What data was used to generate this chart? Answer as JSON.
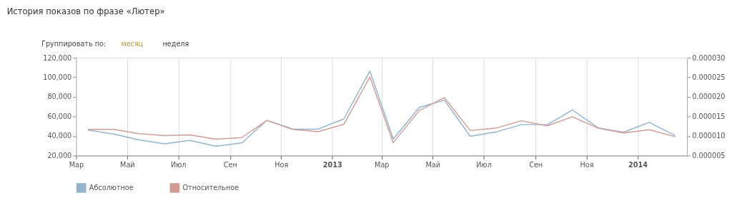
{
  "chart_data": {
    "type": "line",
    "title": "История показов по фразе «Лютер»",
    "annotations": [
      "Группировать по:",
      "месяц",
      "неделя"
    ],
    "x": [
      "2012-03-15",
      "2012-04-15",
      "2012-05-15",
      "2012-06-15",
      "2012-07-15",
      "2012-08-15",
      "2012-09-15",
      "2012-10-15",
      "2012-11-15",
      "2012-12-15",
      "2013-01-15",
      "2013-02-15",
      "2013-03-15",
      "2013-04-15",
      "2013-05-15",
      "2013-06-15",
      "2013-07-15",
      "2013-08-15",
      "2013-09-15",
      "2013-10-15",
      "2013-11-15",
      "2013-12-15",
      "2014-01-15",
      "2014-02-15"
    ],
    "xlim": [
      "2012-03-01",
      "2014-03-01"
    ],
    "xticks": [
      {
        "value": "2012-03-01",
        "label": "Мар"
      },
      {
        "value": "2012-05-01",
        "label": "Май"
      },
      {
        "value": "2012-07-01",
        "label": "Июл"
      },
      {
        "value": "2012-09-01",
        "label": "Сен"
      },
      {
        "value": "2012-11-01",
        "label": "Ноя"
      },
      {
        "value": "2013-01-01",
        "label": "2013"
      },
      {
        "value": "2013-03-01",
        "label": "Мар"
      },
      {
        "value": "2013-05-01",
        "label": "Май"
      },
      {
        "value": "2013-07-01",
        "label": "Июл"
      },
      {
        "value": "2013-09-01",
        "label": "Сен"
      },
      {
        "value": "2013-11-01",
        "label": "Ноя"
      },
      {
        "value": "2014-01-01",
        "label": "2014"
      }
    ],
    "ylim": [
      20000,
      120000
    ],
    "yticks": [
      {
        "value": 20000,
        "label": "20,000"
      },
      {
        "value": 40000,
        "label": "40,000"
      },
      {
        "value": 60000,
        "label": "60,000"
      },
      {
        "value": 80000,
        "label": "80,000"
      },
      {
        "value": 100000,
        "label": "100,000"
      },
      {
        "value": 120000,
        "label": "120,000"
      }
    ],
    "y2lim": [
      5e-06,
      3e-05
    ],
    "y2ticks": [
      {
        "value": 5e-06,
        "label": "0.000005"
      },
      {
        "value": 1e-05,
        "label": "0.000010"
      },
      {
        "value": 1.5e-05,
        "label": "0.000015"
      },
      {
        "value": 2e-05,
        "label": "0.000020"
      },
      {
        "value": 2.5e-05,
        "label": "0.000025"
      },
      {
        "value": 3e-05,
        "label": "0.000030"
      }
    ],
    "series": [
      {
        "name": "Абсолютное",
        "color": "#93b4cc",
        "values": [
          46000,
          42000,
          36000,
          32000,
          35500,
          29500,
          33000,
          56000,
          47000,
          47000,
          57500,
          106400,
          36900,
          69200,
          76700,
          39700,
          44000,
          51600,
          51600,
          66600,
          48300,
          43900,
          54000,
          40400
        ]
      },
      {
        "name": "Относительное",
        "color": "#d29c96",
        "axis": "y2",
        "values": [
          1.17e-05,
          1.17e-05,
          1.06e-05,
          1.01e-05,
          1.03e-05,
          9.2e-06,
          9.6e-06,
          1.4e-05,
          1.17e-05,
          1.11e-05,
          1.3e-05,
          2.51e-05,
          8.3e-06,
          1.65e-05,
          1.98e-05,
          1.14e-05,
          1.2e-05,
          1.39e-05,
          1.26e-05,
          1.49e-05,
          1.2e-05,
          1.08e-05,
          1.16e-05,
          9.8e-06
        ]
      }
    ],
    "grid": "x",
    "legend": "bottom left",
    "marker": "none",
    "line_style": "solid"
  }
}
